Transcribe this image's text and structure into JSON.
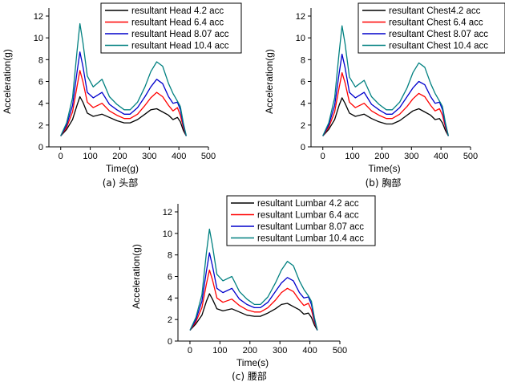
{
  "figure": {
    "charts": [
      {
        "caption": "(a) 头部",
        "xlabel": "Time(g)",
        "ylabel": "Acceleration(g)",
        "legend": [
          "resultant Head 4.2  acc",
          "resultant Head 6.4 acc",
          "resultant Head 8.07 acc",
          "resultant Head  10.4 acc"
        ]
      },
      {
        "caption": "(b) 胸部",
        "xlabel": "Time(s)",
        "ylabel": "Acceleration(g)",
        "legend": [
          "resultant Chest4.2  acc",
          "resultant Chest 6.4 acc",
          "resultant Chest 8.07 acc",
          "resultant Chest  10.4 acc"
        ]
      },
      {
        "caption": "(c) 腰部",
        "xlabel": "Time(s)",
        "ylabel": "Acceleration(g)",
        "legend": [
          "resultant Lumbar 4.2  acc",
          "resultant Lumbar 6.4 acc",
          "resultant Lumbar 8.07 acc",
          "resultant Lumbar  10.4 acc"
        ]
      }
    ]
  },
  "colors": {
    "s1": "#000000",
    "s2": "#ff0000",
    "s3": "#0000cc",
    "s4": "#008080"
  },
  "chart_data": [
    {
      "type": "line",
      "title": "",
      "xlabel": "Time(g)",
      "ylabel": "Acceleration(g)",
      "xlim": [
        -40,
        500
      ],
      "ylim": [
        0,
        12
      ],
      "xticks": [
        0,
        100,
        200,
        300,
        400,
        500
      ],
      "yticks": [
        0,
        2,
        4,
        6,
        8,
        10,
        12
      ],
      "grid": false,
      "legend_position": "top-right",
      "series": [
        {
          "name": "resultant Head 4.2  acc",
          "x": [
            0,
            20,
            40,
            55,
            65,
            75,
            90,
            110,
            140,
            165,
            190,
            215,
            235,
            260,
            285,
            305,
            325,
            345,
            365,
            380,
            395,
            405,
            415,
            425
          ],
          "y": [
            1,
            1.6,
            2.5,
            3.8,
            4.6,
            4.1,
            3.1,
            2.8,
            3.0,
            2.7,
            2.4,
            2.2,
            2.2,
            2.5,
            3.0,
            3.4,
            3.5,
            3.2,
            2.9,
            2.5,
            2.7,
            2.3,
            1.5,
            1.0
          ]
        },
        {
          "name": "resultant Head 6.4 acc",
          "x": [
            0,
            20,
            40,
            55,
            65,
            75,
            90,
            110,
            140,
            165,
            190,
            215,
            235,
            260,
            285,
            305,
            325,
            345,
            365,
            380,
            395,
            405,
            415,
            425
          ],
          "y": [
            1,
            1.8,
            3.2,
            5.5,
            7.0,
            6.0,
            4.1,
            3.6,
            4.0,
            3.3,
            2.9,
            2.6,
            2.6,
            3.0,
            3.8,
            4.5,
            5.0,
            4.6,
            3.8,
            3.3,
            3.6,
            2.9,
            1.8,
            1.0
          ]
        },
        {
          "name": "resultant Head 8.07 acc",
          "x": [
            0,
            20,
            40,
            55,
            65,
            75,
            90,
            110,
            140,
            165,
            190,
            215,
            235,
            260,
            285,
            305,
            325,
            345,
            365,
            380,
            395,
            405,
            415,
            425
          ],
          "y": [
            1,
            2.0,
            3.8,
            6.8,
            8.7,
            7.4,
            5.0,
            4.5,
            5.0,
            3.9,
            3.4,
            3.0,
            3.0,
            3.6,
            4.6,
            5.5,
            6.2,
            5.8,
            4.6,
            4.0,
            4.1,
            3.4,
            2.0,
            1.0
          ]
        },
        {
          "name": "resultant Head  10.4 acc",
          "x": [
            0,
            20,
            40,
            55,
            65,
            75,
            90,
            110,
            140,
            165,
            190,
            215,
            235,
            260,
            285,
            305,
            325,
            345,
            365,
            380,
            395,
            405,
            415,
            425
          ],
          "y": [
            1,
            2.2,
            4.5,
            8.7,
            11.3,
            9.6,
            6.5,
            5.5,
            6.2,
            4.6,
            3.9,
            3.4,
            3.4,
            4.1,
            5.5,
            6.9,
            7.8,
            7.4,
            5.8,
            4.9,
            4.2,
            3.7,
            2.2,
            1.0
          ]
        }
      ]
    },
    {
      "type": "line",
      "title": "",
      "xlabel": "Time(s)",
      "ylabel": "Acceleration(g)",
      "xlim": [
        -40,
        500
      ],
      "ylim": [
        0,
        12
      ],
      "xticks": [
        0,
        100,
        200,
        300,
        400,
        500
      ],
      "yticks": [
        0,
        2,
        4,
        6,
        8,
        10,
        12
      ],
      "grid": false,
      "legend_position": "top-right",
      "series": [
        {
          "name": "resultant Chest4.2  acc",
          "x": [
            0,
            20,
            40,
            55,
            65,
            75,
            90,
            110,
            140,
            165,
            190,
            215,
            235,
            260,
            285,
            305,
            325,
            345,
            365,
            380,
            395,
            405,
            415,
            425
          ],
          "y": [
            1,
            1.6,
            2.5,
            3.8,
            4.5,
            4.0,
            3.1,
            2.8,
            3.0,
            2.6,
            2.3,
            2.1,
            2.1,
            2.4,
            2.9,
            3.3,
            3.5,
            3.2,
            2.9,
            2.5,
            2.6,
            2.2,
            1.5,
            1.0
          ]
        },
        {
          "name": "resultant Chest 6.4 acc",
          "x": [
            0,
            20,
            40,
            55,
            65,
            75,
            90,
            110,
            140,
            165,
            190,
            215,
            235,
            260,
            285,
            305,
            325,
            345,
            365,
            380,
            395,
            405,
            415,
            425
          ],
          "y": [
            1,
            1.8,
            3.2,
            5.4,
            6.8,
            5.9,
            4.1,
            3.6,
            4.0,
            3.3,
            2.9,
            2.6,
            2.6,
            3.0,
            3.7,
            4.4,
            4.9,
            4.6,
            3.8,
            3.3,
            3.5,
            2.9,
            1.8,
            1.0
          ]
        },
        {
          "name": "resultant Chest 8.07 acc",
          "x": [
            0,
            20,
            40,
            55,
            65,
            75,
            90,
            110,
            140,
            165,
            190,
            215,
            235,
            260,
            285,
            305,
            325,
            345,
            365,
            380,
            395,
            405,
            415,
            425
          ],
          "y": [
            1,
            2.0,
            3.8,
            6.7,
            8.5,
            7.3,
            5.0,
            4.5,
            5.0,
            3.9,
            3.4,
            3.0,
            3.0,
            3.6,
            4.6,
            5.4,
            6.0,
            5.7,
            4.6,
            4.0,
            4.1,
            3.4,
            2.0,
            1.0
          ]
        },
        {
          "name": "resultant Chest  10.4 acc",
          "x": [
            0,
            20,
            40,
            55,
            65,
            75,
            90,
            110,
            140,
            165,
            190,
            215,
            235,
            260,
            285,
            305,
            325,
            345,
            365,
            380,
            395,
            405,
            415,
            425
          ],
          "y": [
            1,
            2.2,
            4.5,
            8.6,
            11.1,
            9.5,
            6.4,
            5.5,
            6.1,
            4.6,
            3.9,
            3.4,
            3.4,
            4.1,
            5.4,
            6.8,
            7.7,
            7.3,
            5.8,
            4.9,
            4.2,
            3.7,
            2.2,
            1.0
          ]
        }
      ]
    },
    {
      "type": "line",
      "title": "",
      "xlabel": "Time(s)",
      "ylabel": "Acceleration(g)",
      "xlim": [
        -40,
        500
      ],
      "ylim": [
        0,
        12
      ],
      "xticks": [
        0,
        100,
        200,
        300,
        400,
        500
      ],
      "yticks": [
        0,
        2,
        4,
        6,
        8,
        10,
        12
      ],
      "grid": false,
      "legend_position": "top-right",
      "series": [
        {
          "name": "resultant Lumbar 4.2  acc",
          "x": [
            0,
            20,
            40,
            55,
            65,
            75,
            90,
            110,
            140,
            165,
            190,
            215,
            235,
            260,
            285,
            305,
            325,
            345,
            365,
            380,
            395,
            405,
            415,
            425
          ],
          "y": [
            1,
            1.6,
            2.4,
            3.7,
            4.4,
            3.9,
            3.0,
            2.8,
            3.0,
            2.7,
            2.4,
            2.3,
            2.3,
            2.6,
            3.0,
            3.4,
            3.5,
            3.2,
            2.9,
            2.5,
            2.6,
            2.2,
            1.5,
            1.0
          ]
        },
        {
          "name": "resultant Lumbar 6.4 acc",
          "x": [
            0,
            20,
            40,
            55,
            65,
            75,
            90,
            110,
            140,
            165,
            190,
            215,
            235,
            260,
            285,
            305,
            325,
            345,
            365,
            380,
            395,
            405,
            415,
            425
          ],
          "y": [
            1,
            1.8,
            3.1,
            5.3,
            6.6,
            5.7,
            4.0,
            3.6,
            3.9,
            3.3,
            2.9,
            2.7,
            2.7,
            3.1,
            3.8,
            4.5,
            4.9,
            4.6,
            3.8,
            3.3,
            3.5,
            2.9,
            1.8,
            1.0
          ]
        },
        {
          "name": "resultant Lumbar 8.07 acc",
          "x": [
            0,
            20,
            40,
            55,
            65,
            75,
            90,
            110,
            140,
            165,
            190,
            215,
            235,
            260,
            285,
            305,
            325,
            345,
            365,
            380,
            395,
            405,
            415,
            425
          ],
          "y": [
            1,
            2.0,
            3.7,
            6.5,
            8.2,
            7.0,
            4.9,
            4.5,
            4.9,
            3.9,
            3.4,
            3.1,
            3.1,
            3.6,
            4.6,
            5.4,
            5.9,
            5.6,
            4.5,
            4.0,
            4.1,
            3.4,
            2.0,
            1.0
          ]
        },
        {
          "name": "resultant Lumbar  10.4 acc",
          "x": [
            0,
            20,
            40,
            55,
            65,
            75,
            90,
            110,
            140,
            165,
            190,
            215,
            235,
            260,
            285,
            305,
            325,
            345,
            365,
            380,
            395,
            405,
            415,
            425
          ],
          "y": [
            1,
            2.2,
            4.3,
            8.2,
            10.4,
            8.9,
            6.2,
            5.6,
            6.0,
            4.6,
            3.9,
            3.4,
            3.4,
            4.1,
            5.4,
            6.6,
            7.4,
            7.0,
            5.6,
            4.8,
            4.2,
            3.7,
            2.2,
            1.0
          ]
        }
      ]
    }
  ]
}
